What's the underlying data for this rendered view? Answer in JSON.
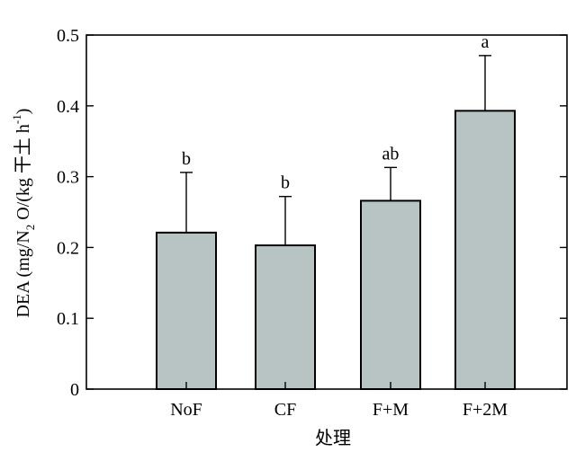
{
  "chart_data": {
    "type": "bar",
    "categories": [
      "NoF",
      "CF",
      "F+M",
      "F+2M"
    ],
    "values": [
      0.221,
      0.203,
      0.266,
      0.393
    ],
    "error_upper": [
      0.306,
      0.272,
      0.313,
      0.471
    ],
    "significance": [
      "b",
      "b",
      "ab",
      "a"
    ],
    "xlabel": "处理",
    "ylabel_parts": {
      "main": "DEA (mg/N",
      "sub": "2",
      "mid": " O/(kg 干土 h",
      "sup": "-1",
      "end": ")"
    },
    "ylim": [
      0,
      0.5
    ],
    "yticks": [
      0,
      0.1,
      0.2,
      0.3,
      0.4,
      0.5
    ],
    "ytick_labels": [
      "0",
      "0.1",
      "0.2",
      "0.3",
      "0.4",
      "0.5"
    ],
    "bar_color": "#b8c3c3",
    "bar_edge_color": "#000000",
    "grid": false,
    "legend": "none"
  }
}
